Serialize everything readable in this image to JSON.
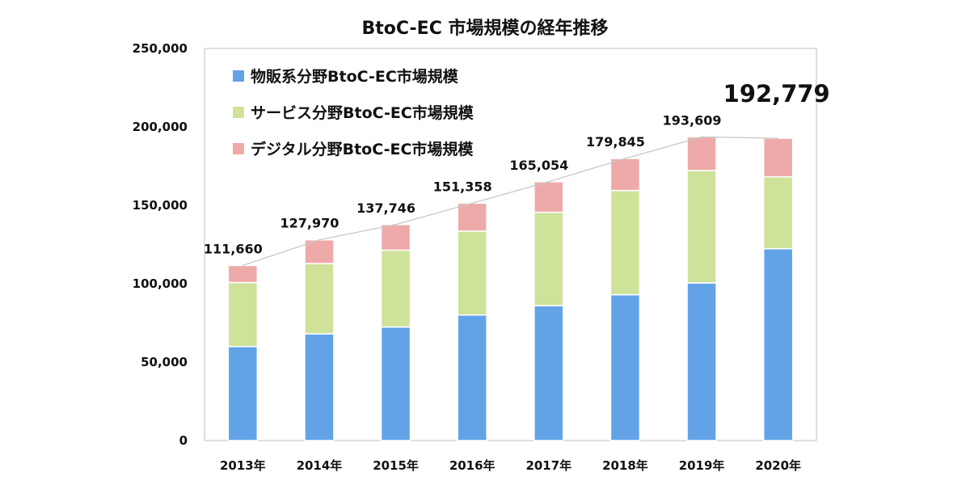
{
  "chart_data": {
    "type": "bar",
    "stacked": true,
    "title": "BtoC-EC 市場規模の経年推移",
    "xlabel": "",
    "ylabel": "",
    "ylim": [
      0,
      250000
    ],
    "y_ticks": [
      "0",
      "50,000",
      "100,000",
      "150,000",
      "200,000",
      "250,000"
    ],
    "y_tick_values": [
      0,
      50000,
      100000,
      150000,
      200000,
      250000
    ],
    "grid": false,
    "legend_position": "top-left",
    "categories": [
      "2013年",
      "2014年",
      "2015年",
      "2016年",
      "2017年",
      "2018年",
      "2019年",
      "2020年"
    ],
    "series": [
      {
        "name": "物販系分野BtoC-EC市場規模",
        "color": "#62a3e8",
        "values": [
          59931,
          68043,
          72398,
          80043,
          86008,
          92992,
          100515,
          122333
        ]
      },
      {
        "name": "サービス分野BtoC-EC市場規模",
        "color": "#cfe29a",
        "values": [
          40836,
          44816,
          49014,
          53532,
          59568,
          66471,
          71672,
          45832
        ]
      },
      {
        "name": "デジタル分野BtoC-EC市場規模",
        "color": "#eeaaa8",
        "values": [
          10893,
          15111,
          16334,
          17782,
          19478,
          20382,
          21422,
          24614
        ]
      }
    ],
    "totals": [
      111660,
      127970,
      137746,
      151358,
      165054,
      179845,
      193609,
      192779
    ],
    "total_labels": [
      "111,660",
      "127,970",
      "137,746",
      "151,358",
      "165,054",
      "179,845",
      "193,609",
      "192,779"
    ],
    "highlighted_total_index": 7,
    "trend_line_color": "#c8c8c8"
  }
}
